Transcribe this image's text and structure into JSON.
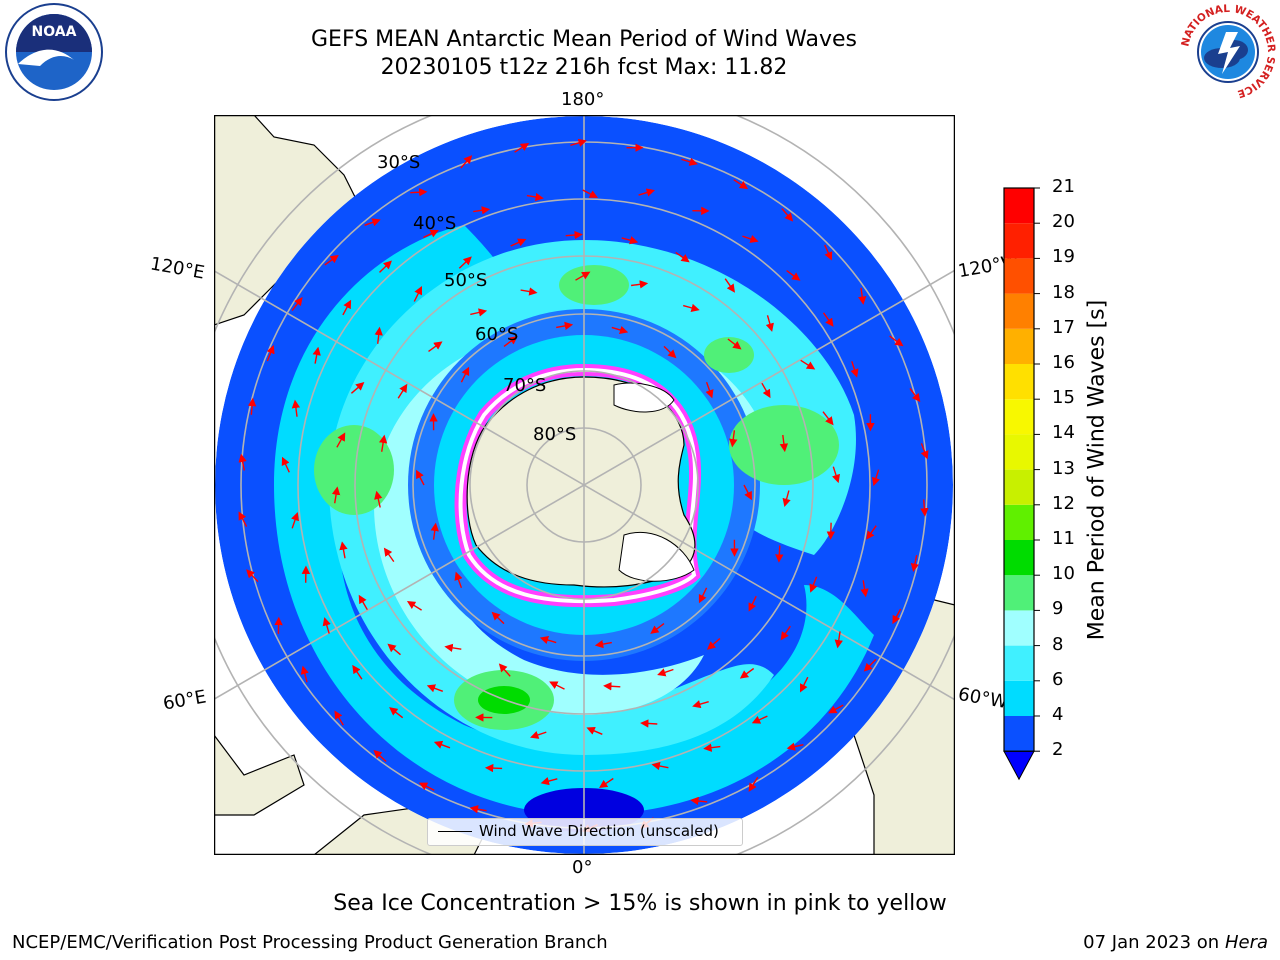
{
  "title": {
    "line1": "GEFS MEAN Antarctic Mean Period of Wind Waves",
    "line2": "20230105 t12z 216h fcst   Max: 11.82"
  },
  "map_labels": {
    "lat": [
      "30°S",
      "40°S",
      "50°S",
      "60°S",
      "70°S",
      "80°S"
    ],
    "lon": {
      "top": "180°",
      "bottom": "0°",
      "upper_left": "120°E",
      "upper_right": "120°W",
      "lower_left": "60°E",
      "lower_right": "60°W"
    }
  },
  "legend": {
    "label": "Wind Wave Direction (unscaled)"
  },
  "colorbar": {
    "label": "Mean Period of Wind Waves [s]",
    "ticks": [
      "2",
      "4",
      "6",
      "8",
      "9",
      "10",
      "11",
      "12",
      "13",
      "14",
      "15",
      "16",
      "17",
      "18",
      "19",
      "20",
      "21"
    ],
    "colors": [
      "#0a50ff",
      "#00dcff",
      "#40f0ff",
      "#a0ffff",
      "#50f078",
      "#00dc00",
      "#60f000",
      "#c8f000",
      "#e8f800",
      "#f8f800",
      "#ffe000",
      "#ffb000",
      "#ff8000",
      "#ff5000",
      "#ff2000",
      "#ff0000"
    ],
    "extend_color": "#0000ff"
  },
  "note": "Sea Ice Concentration > 15% is shown in pink to yellow",
  "footer": {
    "left": "NCEP/EMC/Verification Post Processing Product Generation Branch",
    "right_date": "07 Jan 2023 on ",
    "right_host": "Hera"
  },
  "logos": {
    "noaa_text": "NOAA",
    "nws_ring": "NATIONAL WEATHER SERVICE"
  }
}
